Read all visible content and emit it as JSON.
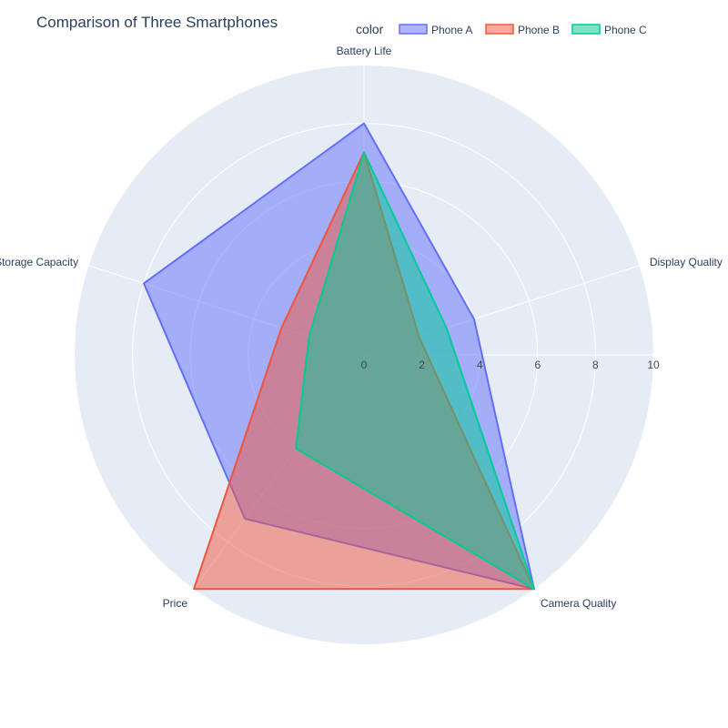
{
  "chart_data": {
    "type": "radar",
    "title": "Comparison of Three Smartphones",
    "legend_title": "color",
    "legend_position": "top-right",
    "categories": [
      "Battery Life",
      "Display Quality",
      "Camera Quality",
      "Price",
      "Storage Capacity"
    ],
    "radial_range": [
      0,
      10
    ],
    "radial_ticks": [
      "0",
      "2",
      "4",
      "6",
      "8",
      "10"
    ],
    "series": [
      {
        "name": "Phone A",
        "values": [
          8,
          4,
          10,
          7,
          8
        ],
        "color": "#636efa"
      },
      {
        "name": "Phone B",
        "values": [
          7,
          2,
          10,
          10,
          3
        ],
        "color": "#ef553b"
      },
      {
        "name": "Phone C",
        "values": [
          7,
          3,
          10,
          4,
          2
        ],
        "color": "#00cc96"
      }
    ]
  }
}
